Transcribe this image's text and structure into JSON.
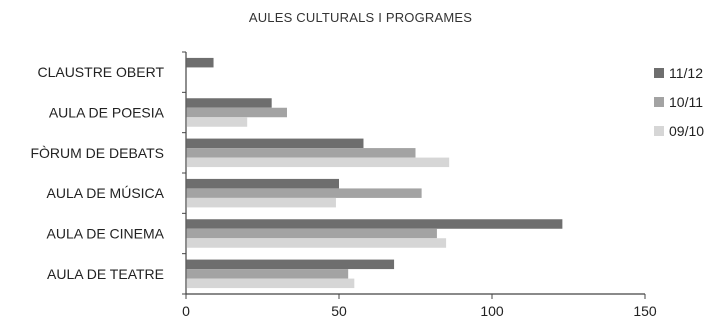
{
  "chart_data": {
    "type": "bar",
    "orientation": "horizontal",
    "title": "AULES CULTURALS I PROGRAMES",
    "categories": [
      "CLAUSTRE OBERT",
      "AULA DE POESIA",
      "FÒRUM DE DEBATS",
      "AULA DE MÚSICA",
      "AULA DE CINEMA",
      "AULA DE TEATRE"
    ],
    "series": [
      {
        "name": "11/12",
        "color": "#6e6e6e",
        "values": [
          9,
          28,
          58,
          50,
          123,
          68
        ]
      },
      {
        "name": "10/11",
        "color": "#a3a3a3",
        "values": [
          0,
          33,
          75,
          77,
          82,
          53
        ]
      },
      {
        "name": "09/10",
        "color": "#d6d6d6",
        "values": [
          0,
          20,
          86,
          49,
          85,
          55
        ]
      }
    ],
    "xlim": [
      0,
      150
    ],
    "xticks": [
      "0",
      "50",
      "100",
      "150"
    ],
    "xlabel": "",
    "ylabel": "",
    "grid": false,
    "legend_position": "right"
  }
}
